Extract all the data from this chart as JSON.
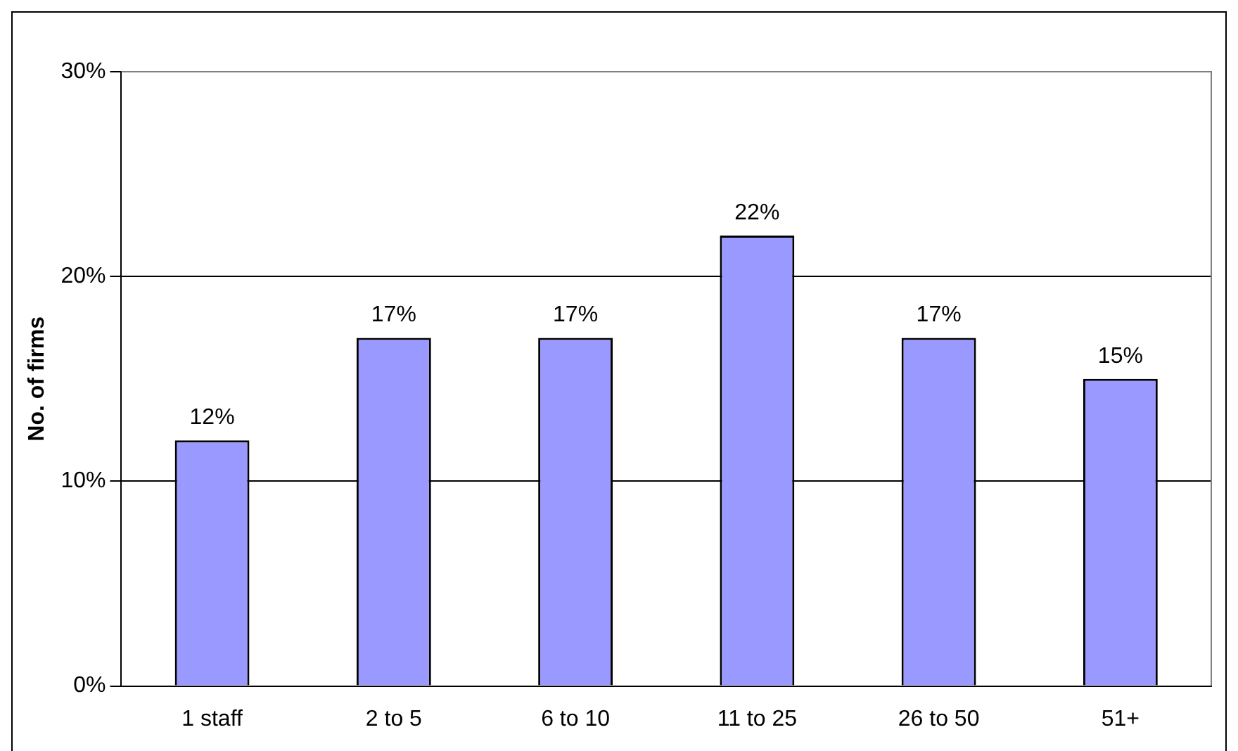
{
  "chart_data": {
    "type": "bar",
    "ylabel": "No. of firms",
    "categories": [
      "1 staff",
      "2 to 5",
      "6 to 10",
      "11 to 25",
      "26 to 50",
      "51+"
    ],
    "values": [
      12,
      17,
      17,
      22,
      17,
      15
    ],
    "value_labels": [
      "12%",
      "17%",
      "17%",
      "22%",
      "17%",
      "15%"
    ],
    "color": "#9999ff",
    "ylim": [
      0,
      30
    ],
    "yticks": [
      {
        "value": 0,
        "label": "0%"
      },
      {
        "value": 10,
        "label": "10%"
      },
      {
        "value": 20,
        "label": "20%"
      },
      {
        "value": 30,
        "label": "30%"
      }
    ],
    "grid": "y",
    "legend": false
  }
}
